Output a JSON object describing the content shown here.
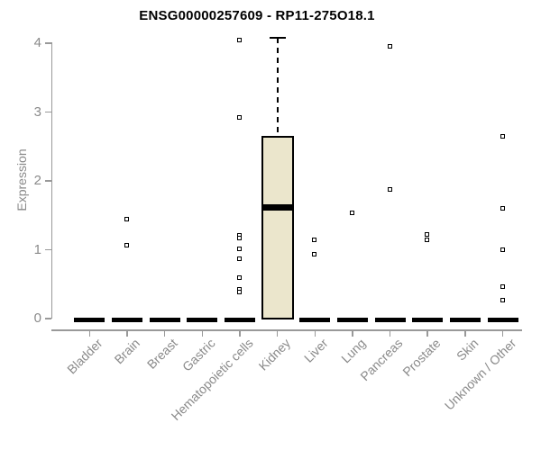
{
  "chart_data": {
    "type": "boxplot",
    "title": "ENSG00000257609 - RP11-275O18.1",
    "ylabel": "Expression",
    "xlabel": "",
    "ylim": [
      0,
      4
    ],
    "yticks": [
      0,
      1,
      2,
      3,
      4
    ],
    "grid": false,
    "legend": false,
    "categories": [
      "Bladder",
      "Brain",
      "Breast",
      "Gastric",
      "Hematopoietic cells",
      "Kidney",
      "Liver",
      "Lung",
      "Pancreas",
      "Prostate",
      "Skin",
      "Unknown / Other"
    ],
    "series": [
      {
        "category": "Bladder",
        "q1": 0,
        "median": 0,
        "q3": 0,
        "whisker_low": 0,
        "whisker_high": 0,
        "outliers": []
      },
      {
        "category": "Brain",
        "q1": 0,
        "median": 0,
        "q3": 0,
        "whisker_low": 0,
        "whisker_high": 0,
        "outliers": [
          1.44,
          1.06
        ]
      },
      {
        "category": "Breast",
        "q1": 0,
        "median": 0,
        "q3": 0,
        "whisker_low": 0,
        "whisker_high": 0,
        "outliers": []
      },
      {
        "category": "Gastric",
        "q1": 0,
        "median": 0,
        "q3": 0,
        "whisker_low": 0,
        "whisker_high": 0,
        "outliers": []
      },
      {
        "category": "Hematopoietic cells",
        "q1": 0,
        "median": 0,
        "q3": 0,
        "whisker_low": 0,
        "whisker_high": 0,
        "outliers": [
          4.05,
          2.92,
          1.21,
          1.17,
          1.01,
          0.87,
          0.6,
          0.43,
          0.39
        ]
      },
      {
        "category": "Kidney",
        "q1": 0,
        "median": 1.61,
        "q3": 2.65,
        "whisker_low": 0,
        "whisker_high": 4.08,
        "outliers": []
      },
      {
        "category": "Liver",
        "q1": 0,
        "median": 0,
        "q3": 0,
        "whisker_low": 0,
        "whisker_high": 0,
        "outliers": [
          1.14,
          0.93
        ]
      },
      {
        "category": "Lung",
        "q1": 0,
        "median": 0,
        "q3": 0,
        "whisker_low": 0,
        "whisker_high": 0,
        "outliers": [
          1.54
        ]
      },
      {
        "category": "Pancreas",
        "q1": 0,
        "median": 0,
        "q3": 0,
        "whisker_low": 0,
        "whisker_high": 0,
        "outliers": [
          3.96,
          1.88
        ]
      },
      {
        "category": "Prostate",
        "q1": 0,
        "median": 0,
        "q3": 0,
        "whisker_low": 0,
        "whisker_high": 0,
        "outliers": [
          1.22,
          1.15
        ]
      },
      {
        "category": "Skin",
        "q1": 0,
        "median": 0,
        "q3": 0,
        "whisker_low": 0,
        "whisker_high": 0,
        "outliers": []
      },
      {
        "category": "Unknown / Other",
        "q1": 0,
        "median": 0,
        "q3": 0,
        "whisker_low": 0,
        "whisker_high": 0,
        "outliers": [
          2.65,
          1.6,
          1.0,
          0.47,
          0.27
        ]
      }
    ],
    "colors": {
      "box_fill": "#EBE6CC",
      "box_border": "#000000",
      "median": "#000000",
      "whisker": "#000000",
      "outlier_border": "#000000",
      "outlier_fill": "#ffffff",
      "zero_bar": "#000000",
      "axis": "#999999",
      "tick_text": "#8a8a8a",
      "title_text": "#000000",
      "background": "#ffffff"
    }
  }
}
